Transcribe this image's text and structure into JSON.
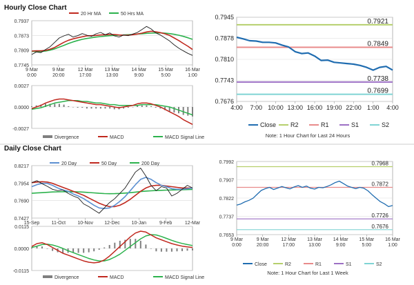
{
  "sections": {
    "hourly_title": "Hourly Close Chart",
    "daily_title": "Daily Close Chart"
  },
  "colors": {
    "price": "#1a1a1a",
    "ma_short": "#c0281e",
    "ma_long": "#2bb24c",
    "ma_mid": "#5b8fd1",
    "close": "#1f6cb0",
    "r2": "#b5cf6b",
    "r1": "#e88a8a",
    "s1": "#9c6fc4",
    "s2": "#7fd4d4",
    "divergence": "#7f7f7f",
    "grid": "#d9d9d9"
  },
  "chart_data": [
    {
      "id": "hourly_price",
      "type": "line",
      "title": "Hourly Close Chart",
      "ylim": [
        0.7745,
        0.7937
      ],
      "y_ticks": [
        "0.7937",
        "0.7873",
        "0.7809",
        "0.7745"
      ],
      "x_labels": [
        [
          "9 Mar",
          "0:00"
        ],
        [
          "9 Mar",
          "20:00"
        ],
        [
          "12 Mar",
          "17:00"
        ],
        [
          "13 Mar",
          "13:00"
        ],
        [
          "14 Mar",
          "9:00"
        ],
        [
          "15 Mar",
          "5:00"
        ],
        [
          "16 Mar",
          "1:00"
        ]
      ],
      "legend": [
        "20 Hr MA",
        "50 Hrs MA"
      ],
      "series": [
        {
          "name": "Close",
          "values": [
            0.779,
            0.7801,
            0.7798,
            0.7812,
            0.7824,
            0.7843,
            0.7862,
            0.7871,
            0.7878,
            0.7866,
            0.7872,
            0.7881,
            0.7874,
            0.7869,
            0.788,
            0.7886,
            0.7876,
            0.7884,
            0.7871,
            0.7866,
            0.7875,
            0.7872,
            0.7879,
            0.7886,
            0.7899,
            0.7912,
            0.7901,
            0.7884,
            0.7875,
            0.7862,
            0.7849,
            0.7832,
            0.7818,
            0.7806,
            0.7795,
            0.7786
          ]
        },
        {
          "name": "20 Hr MA",
          "values": [
            0.7805,
            0.7806,
            0.7806,
            0.7808,
            0.7813,
            0.7821,
            0.7832,
            0.7843,
            0.7852,
            0.7858,
            0.7863,
            0.7867,
            0.7871,
            0.7872,
            0.7873,
            0.7875,
            0.7876,
            0.7877,
            0.7877,
            0.7875,
            0.7874,
            0.7874,
            0.7876,
            0.7879,
            0.7883,
            0.7888,
            0.7891,
            0.7889,
            0.7885,
            0.788,
            0.7873,
            0.7862,
            0.7851,
            0.7838,
            0.7826,
            0.7812
          ]
        },
        {
          "name": "50 Hrs MA",
          "values": [
            0.7804,
            0.7803,
            0.7803,
            0.7805,
            0.7809,
            0.7815,
            0.7822,
            0.783,
            0.7838,
            0.7845,
            0.7851,
            0.7856,
            0.786,
            0.7863,
            0.7866,
            0.7868,
            0.787,
            0.7872,
            0.7873,
            0.7874,
            0.7875,
            0.7876,
            0.7877,
            0.7879,
            0.788,
            0.7882,
            0.7883,
            0.7884,
            0.7884,
            0.7883,
            0.7881,
            0.7878,
            0.7874,
            0.7869,
            0.7863,
            0.7856
          ]
        }
      ]
    },
    {
      "id": "hourly_macd",
      "type": "line",
      "ylim": [
        -0.0027,
        0.0027
      ],
      "y_ticks": [
        "0.0027",
        "0.0000",
        "-0.0027"
      ],
      "legend": [
        "Divergence",
        "MACD",
        "MACD Signal Line"
      ],
      "series": [
        {
          "name": "MACD",
          "values": [
            -0.0002,
            0.0,
            0.0002,
            0.0005,
            0.0007,
            0.0009,
            0.001,
            0.001,
            0.0009,
            0.0008,
            0.0007,
            0.0006,
            0.0005,
            0.0004,
            0.0003,
            0.0003,
            0.0002,
            0.0001,
            0.0,
            -0.0001,
            0.0,
            0.0001,
            0.0002,
            0.0004,
            0.0005,
            0.0005,
            0.0004,
            0.0002,
            0.0,
            -0.0003,
            -0.0006,
            -0.0009,
            -0.0012,
            -0.0016,
            -0.0019,
            -0.0022
          ]
        },
        {
          "name": "MACD Signal Line",
          "values": [
            -0.0003,
            -0.0002,
            -0.0001,
            0.0001,
            0.0003,
            0.0005,
            0.0006,
            0.0007,
            0.0008,
            0.0008,
            0.0008,
            0.0007,
            0.0007,
            0.0006,
            0.0005,
            0.0005,
            0.0004,
            0.0003,
            0.0003,
            0.0002,
            0.0002,
            0.0002,
            0.0002,
            0.0002,
            0.0003,
            0.0003,
            0.0003,
            0.0003,
            0.0002,
            0.0001,
            0.0,
            -0.0002,
            -0.0004,
            -0.0006,
            -0.0008,
            -0.001
          ]
        },
        {
          "name": "Divergence",
          "values": [
            0.0001,
            0.0002,
            0.0003,
            0.0004,
            0.0004,
            0.0004,
            0.0004,
            0.0003,
            0.0001,
            0.0,
            -0.0001,
            -0.0001,
            -0.0002,
            -0.0002,
            -0.0002,
            -0.0002,
            -0.0002,
            -0.0002,
            -0.0003,
            -0.0003,
            -0.0002,
            -0.0001,
            0.0,
            0.0002,
            0.0002,
            0.0002,
            0.0001,
            -0.0001,
            -0.0002,
            -0.0004,
            -0.0006,
            -0.0007,
            -0.0008,
            -0.001,
            -0.0011,
            -0.0012
          ]
        }
      ]
    },
    {
      "id": "hourly_24h",
      "type": "line",
      "ylim": [
        0.7676,
        0.7945
      ],
      "y_ticks": [
        "0.7945",
        "0.7878",
        "0.7810",
        "0.7743",
        "0.7676"
      ],
      "x_labels": [
        "4:00",
        "7:00",
        "10:00",
        "13:00",
        "16:00",
        "19:00",
        "22:00",
        "1:00",
        "4:00"
      ],
      "levels": [
        {
          "name": "R2",
          "value": 0.7921,
          "label": "0.7921"
        },
        {
          "name": "R1",
          "value": 0.7849,
          "label": "0.7849"
        },
        {
          "name": "S1",
          "value": 0.7738,
          "label": "0.7738"
        },
        {
          "name": "S2",
          "value": 0.7699,
          "label": "0.7699"
        }
      ],
      "legend": [
        "Close",
        "R2",
        "R1",
        "S1",
        "S2"
      ],
      "note": "Note: 1 Hour Chart for Last 24 Hours",
      "series": [
        {
          "name": "Close",
          "values": [
            0.7881,
            0.7876,
            0.787,
            0.7869,
            0.7865,
            0.7865,
            0.7863,
            0.7856,
            0.785,
            0.7835,
            0.7829,
            0.7831,
            0.7821,
            0.7807,
            0.7808,
            0.7801,
            0.7799,
            0.7797,
            0.7795,
            0.7791,
            0.7785,
            0.7776,
            0.7785,
            0.7788,
            0.7776
          ]
        }
      ]
    },
    {
      "id": "daily_price",
      "type": "line",
      "title": "Daily Close Chart",
      "ylim": [
        0.7427,
        0.8217
      ],
      "y_ticks": [
        "0.8217",
        "0.7954",
        "0.7690",
        "0.7427"
      ],
      "x_labels": [
        "15-Sep",
        "11-Oct",
        "10-Nov",
        "12-Dec",
        "10-Jan",
        "9-Feb",
        "12-Mar"
      ],
      "legend": [
        "20 Day",
        "50 Day",
        "200 Day"
      ],
      "series": [
        {
          "name": "Close",
          "values": [
            0.796,
            0.799,
            0.7945,
            0.7905,
            0.786,
            0.784,
            0.785,
            0.78,
            0.776,
            0.773,
            0.764,
            0.76,
            0.755,
            0.75,
            0.758,
            0.766,
            0.772,
            0.78,
            0.788,
            0.8,
            0.812,
            0.818,
            0.806,
            0.792,
            0.784,
            0.79,
            0.788,
            0.776,
            0.78,
            0.786,
            0.792,
            0.788
          ]
        },
        {
          "name": "20 Day",
          "values": [
            0.79,
            0.793,
            0.795,
            0.795,
            0.792,
            0.788,
            0.785,
            0.783,
            0.779,
            0.776,
            0.772,
            0.767,
            0.762,
            0.758,
            0.757,
            0.758,
            0.762,
            0.768,
            0.775,
            0.784,
            0.793,
            0.801,
            0.804,
            0.801,
            0.796,
            0.792,
            0.79,
            0.787,
            0.786,
            0.786,
            0.787,
            0.788
          ]
        },
        {
          "name": "50 Day",
          "values": [
            0.796,
            0.797,
            0.7975,
            0.797,
            0.795,
            0.792,
            0.789,
            0.786,
            0.783,
            0.78,
            0.777,
            0.773,
            0.769,
            0.765,
            0.762,
            0.76,
            0.76,
            0.762,
            0.766,
            0.771,
            0.777,
            0.783,
            0.788,
            0.791,
            0.792,
            0.792,
            0.791,
            0.79,
            0.789,
            0.788,
            0.788,
            0.788
          ]
        },
        {
          "name": "200 Day",
          "values": [
            0.78,
            0.7805,
            0.781,
            0.7815,
            0.782,
            0.7822,
            0.7824,
            0.7825,
            0.7824,
            0.7822,
            0.7818,
            0.7812,
            0.7806,
            0.78,
            0.7796,
            0.7794,
            0.7795,
            0.7798,
            0.7803,
            0.781,
            0.7818,
            0.7826,
            0.7833,
            0.7838,
            0.7842,
            0.7845,
            0.7848,
            0.785,
            0.7852,
            0.7854,
            0.7856,
            0.7858
          ]
        }
      ]
    },
    {
      "id": "daily_macd",
      "type": "line",
      "ylim": [
        -0.0115,
        0.0115
      ],
      "y_ticks": [
        "0.0115",
        "0.0000",
        "-0.0115"
      ],
      "legend": [
        "Divergence",
        "MACD",
        "MACD Signal Line"
      ],
      "series": [
        {
          "name": "MACD",
          "values": [
            0.001,
            0.0025,
            0.003,
            0.002,
            0.0005,
            -0.001,
            -0.0025,
            -0.0035,
            -0.0045,
            -0.0055,
            -0.0065,
            -0.0072,
            -0.0075,
            -0.0072,
            -0.006,
            -0.004,
            -0.0015,
            0.001,
            0.0035,
            0.006,
            0.008,
            0.009,
            0.0085,
            0.007,
            0.0055,
            0.0045,
            0.0035,
            0.0025,
            0.0018,
            0.0012,
            0.0008,
            0.0005
          ]
        },
        {
          "name": "MACD Signal Line",
          "values": [
            0.0005,
            0.0012,
            0.002,
            0.0022,
            0.0018,
            0.001,
            0.0,
            -0.0012,
            -0.0022,
            -0.0032,
            -0.0042,
            -0.0052,
            -0.006,
            -0.0065,
            -0.0065,
            -0.0058,
            -0.0045,
            -0.003,
            -0.001,
            0.001,
            0.003,
            0.005,
            0.0065,
            0.0072,
            0.007,
            0.0062,
            0.0052,
            0.0042,
            0.0033,
            0.0026,
            0.002,
            0.0015
          ]
        },
        {
          "name": "Divergence",
          "values": [
            0.0005,
            0.0013,
            0.001,
            -0.0002,
            -0.0013,
            -0.002,
            -0.0025,
            -0.0023,
            -0.0023,
            -0.0023,
            -0.0023,
            -0.002,
            -0.0015,
            -0.0007,
            0.0005,
            0.0018,
            0.003,
            0.004,
            0.0045,
            0.005,
            0.005,
            0.004,
            0.002,
            -0.0002,
            -0.0015,
            -0.0017,
            -0.0017,
            -0.0017,
            -0.0015,
            -0.0014,
            -0.0012,
            -0.001
          ]
        }
      ]
    },
    {
      "id": "weekly_1h",
      "type": "line",
      "ylim": [
        0.7653,
        0.7992
      ],
      "y_ticks": [
        "0.7992",
        "0.7907",
        "0.7822",
        "0.7737",
        "0.7653"
      ],
      "x_labels": [
        [
          "9 Mar",
          "0:00"
        ],
        [
          "9 Mar",
          "20:00"
        ],
        [
          "12 Mar",
          "17:00"
        ],
        [
          "13 Mar",
          "13:00"
        ],
        [
          "14 Mar",
          "9:00"
        ],
        [
          "15 Mar",
          "5:00"
        ],
        [
          "16 Mar",
          "1:00"
        ]
      ],
      "levels": [
        {
          "name": "R2",
          "value": 0.7968,
          "label": "0.7968"
        },
        {
          "name": "R1",
          "value": 0.7872,
          "label": "0.7872"
        },
        {
          "name": "S1",
          "value": 0.7726,
          "label": "0.7726"
        },
        {
          "name": "S2",
          "value": 0.7676,
          "label": "0.7676"
        }
      ],
      "legend": [
        "Close",
        "R2",
        "R1",
        "S1",
        "S2"
      ],
      "note": "Note: 1 Hour Chart for Last 1 Week",
      "series": [
        {
          "name": "Close",
          "values": [
            0.779,
            0.7795,
            0.7805,
            0.7812,
            0.7822,
            0.784,
            0.7858,
            0.7866,
            0.7872,
            0.7862,
            0.7869,
            0.7876,
            0.787,
            0.7865,
            0.7874,
            0.788,
            0.7872,
            0.7878,
            0.7868,
            0.7864,
            0.7872,
            0.787,
            0.7876,
            0.7884,
            0.7894,
            0.7901,
            0.789,
            0.7878,
            0.7872,
            0.7866,
            0.7872,
            0.7868,
            0.7856,
            0.7838,
            0.7822,
            0.7806,
            0.7796,
            0.7783,
            0.7788
          ]
        }
      ]
    }
  ]
}
